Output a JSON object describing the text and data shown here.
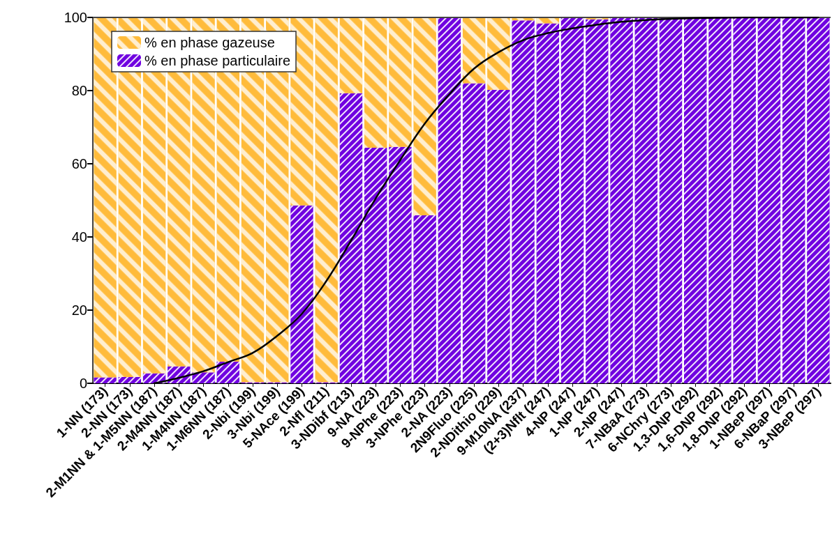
{
  "chart_data": {
    "type": "bar",
    "stacked": true,
    "legend": "top left",
    "grid": false,
    "categories": [
      "1-NN (173)",
      "2-NN (173)",
      "2-M1NN & 1-M5NN (187)",
      "2-M4NN (187)",
      "1-M4NN (187)",
      "1-M6NN (187)",
      "2-Nbi (199)",
      "3-Nbi (199)",
      "5-NAce (199)",
      "2-Nfl (211)",
      "3-NDibf (213)",
      "9-NA (223)",
      "9-NPhe (223)",
      "3-NPhe (223)",
      "2-NA (223)",
      "2N9Fluo (225)",
      "2-NDithio (229)",
      "9-M10NA (237)",
      "(2+3)Nflt (247)",
      "4-NP (247)",
      "1-NP (247)",
      "2-NP (247)",
      "7-NBaA (273)",
      "6-NChry (273)",
      "1,3-DNP (292)",
      "1,6-DNP (292)",
      "1,8-DNP (292)",
      "1-NBeP (297)",
      "6-NBaP (297)",
      "3-NBeP (297)"
    ],
    "ylim": [
      0,
      100
    ],
    "yticks": [
      0,
      20,
      40,
      60,
      80,
      100
    ],
    "series": [
      {
        "name": "% en phase particulaire",
        "color": "#7000e0",
        "values": [
          1.6,
          1.7,
          2.7,
          4.6,
          3,
          5.9,
          0.3,
          0.3,
          48.6,
          0.3,
          79.3,
          64.4,
          64.6,
          45.9,
          100,
          82,
          80.2,
          99.2,
          98.4,
          100,
          99.5,
          100,
          100,
          100,
          100,
          100,
          100,
          100,
          100,
          100
        ]
      },
      {
        "name": "% en phase gazeuse",
        "color": "#ffbb3b",
        "values": [
          98.4,
          98.3,
          97.3,
          95.4,
          97,
          94.1,
          99.7,
          99.7,
          51.4,
          99.7,
          20.7,
          35.6,
          35.4,
          54.1,
          0,
          18,
          19.8,
          0.8,
          1.6,
          0,
          0.5,
          0,
          0,
          0,
          0,
          0,
          0,
          0,
          0,
          0
        ]
      },
      {
        "type": "line",
        "color": "#000000",
        "marker": "none",
        "line_style": "solid",
        "values": [
          null,
          null,
          0,
          1.5,
          3.3,
          5.8,
          8.3,
          13,
          19,
          28,
          39,
          50.5,
          61,
          71,
          79,
          86,
          90.5,
          93.8,
          95.7,
          97,
          98,
          98.8,
          99.3,
          99.6,
          99.8,
          99.9,
          100,
          100,
          100,
          100
        ]
      }
    ]
  }
}
